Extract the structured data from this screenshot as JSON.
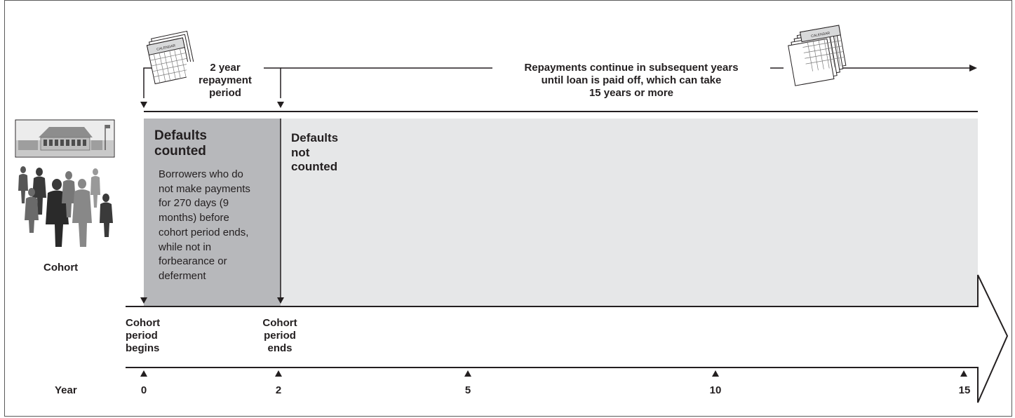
{
  "header": {
    "repayment_period": "2 year repayment period",
    "repayment_period_line1": "2 year",
    "repayment_period_line2": "repayment",
    "repayment_period_line3": "period",
    "continue_line1": "Repayments continue in subsequent years",
    "continue_line2": "until loan is paid off, which can take",
    "continue_line3": "15 years or more",
    "calendar_small_label": "CALENDAR",
    "calendar_stack_label": "CALENDAR"
  },
  "regions": {
    "counted_title_line1": "Defaults",
    "counted_title_line2": "counted",
    "counted_desc_lines": [
      "Borrowers who do",
      "not make payments",
      "for 270 days (9",
      "months) before",
      "cohort period ends,",
      "while not in",
      "forbearance or",
      "deferment"
    ],
    "not_counted_line1": "Defaults",
    "not_counted_line2": "not",
    "not_counted_line3": "counted"
  },
  "cohort_label": "Cohort",
  "period_begins": [
    "Cohort",
    "period",
    "begins"
  ],
  "period_ends": [
    "Cohort",
    "period",
    "ends"
  ],
  "timeline": {
    "axis_label": "Year",
    "ticks": [
      "0",
      "2",
      "5",
      "10",
      "15"
    ]
  },
  "colors": {
    "counted_fill": "#b7b8bb",
    "not_counted_fill": "#e6e7e8",
    "line": "#231f20"
  }
}
